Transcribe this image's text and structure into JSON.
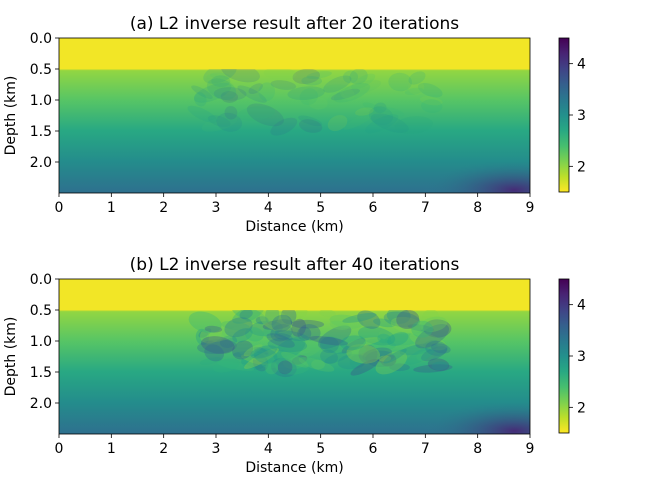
{
  "chart_data": [
    {
      "type": "heatmap",
      "title": "(a) L2 inverse result after 20 iterations",
      "xlabel": "Distance (km)",
      "ylabel": "Depth (km)",
      "xlim": [
        0,
        9
      ],
      "ylim": [
        2.5,
        0.0
      ],
      "xticks": [
        "0",
        "1",
        "2",
        "3",
        "4",
        "5",
        "6",
        "7",
        "8",
        "9"
      ],
      "yticks": [
        "0.0",
        "0.5",
        "1.0",
        "1.5",
        "2.0"
      ],
      "colorbar": {
        "range": [
          1.5,
          4.5
        ],
        "ticks": [
          "2",
          "3",
          "4"
        ],
        "colormap": "viridis_r"
      },
      "grid": false
    },
    {
      "type": "heatmap",
      "title": "(b) L2 inverse result after 40 iterations",
      "xlabel": "Distance (km)",
      "ylabel": "Depth (km)",
      "xlim": [
        0,
        9
      ],
      "ylim": [
        2.5,
        0.0
      ],
      "xticks": [
        "0",
        "1",
        "2",
        "3",
        "4",
        "5",
        "6",
        "7",
        "8",
        "9"
      ],
      "yticks": [
        "0.0",
        "0.5",
        "1.0",
        "1.5",
        "2.0"
      ],
      "colorbar": {
        "range": [
          1.5,
          4.5
        ],
        "ticks": [
          "2",
          "3",
          "4"
        ],
        "colormap": "viridis_r"
      },
      "grid": false
    }
  ]
}
